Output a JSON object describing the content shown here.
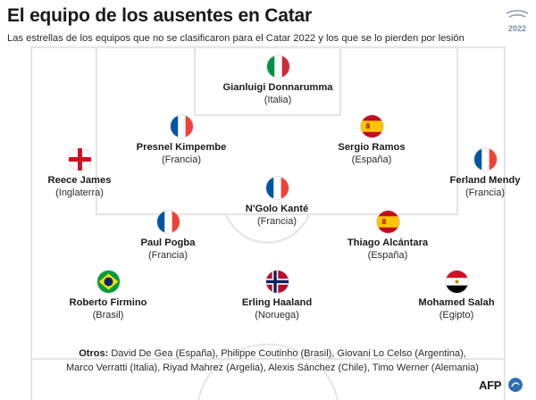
{
  "header": {
    "title": "El equipo de los ausentes en Catar",
    "subtitle": "Las estrellas de los equipos que no se clasificaron para el Catar 2022 y los que se lo pierden por lesión",
    "badge_year": "2022"
  },
  "players": [
    {
      "name": "Gianluigi Donnarumma",
      "team": "(Italia)",
      "flag": "italy-flag-icon"
    },
    {
      "name": "Presnel Kimpembe",
      "team": "(Francia)",
      "flag": "france-flag-icon"
    },
    {
      "name": "Sergio Ramos",
      "team": "(España)",
      "flag": "spain-flag-icon"
    },
    {
      "name": "Reece James",
      "team": "(Inglaterra)",
      "flag": "england-flag-icon"
    },
    {
      "name": "Ferland Mendy",
      "team": "(Francia)",
      "flag": "france-flag-icon"
    },
    {
      "name": "N'Golo Kanté",
      "team": "(Francia)",
      "flag": "france-flag-icon"
    },
    {
      "name": "Paul Pogba",
      "team": "(Francia)",
      "flag": "france-flag-icon"
    },
    {
      "name": "Thiago Alcántara",
      "team": "(España)",
      "flag": "spain-flag-icon"
    },
    {
      "name": "Roberto Firmino",
      "team": "(Brasil)",
      "flag": "brazil-flag-icon"
    },
    {
      "name": "Erling Haaland",
      "team": "(Noruega)",
      "flag": "norway-flag-icon"
    },
    {
      "name": "Mohamed Salah",
      "team": "(Egipto)",
      "flag": "egypt-flag-icon"
    }
  ],
  "others": {
    "label": "Otros:",
    "line1": "David De Gea (España), Philippe Coutinho (Brasil), Giovani Lo Celso (Argentina),",
    "line2": "Marco Verratti (Italia), Riyad Mahrez (Argelia), Alexis Sánchez (Chile), Timo Werner (Alemania)"
  },
  "credit": {
    "agency": "AFP"
  },
  "colors": {
    "pitch_lines": "#e6e6e6",
    "france_blue": "#0055a4",
    "france_red": "#ef4135",
    "italy_green": "#009246",
    "italy_red": "#ce2b37",
    "spain_red": "#c60b1e",
    "spain_yellow": "#ffc400",
    "brazil_green": "#009c3b",
    "brazil_yellow": "#ffdf00",
    "brazil_blue": "#002776",
    "norway_red": "#ba0c2f",
    "norway_blue": "#00205b",
    "egypt_red": "#ce1126",
    "afp_blue": "#2f6db5"
  }
}
